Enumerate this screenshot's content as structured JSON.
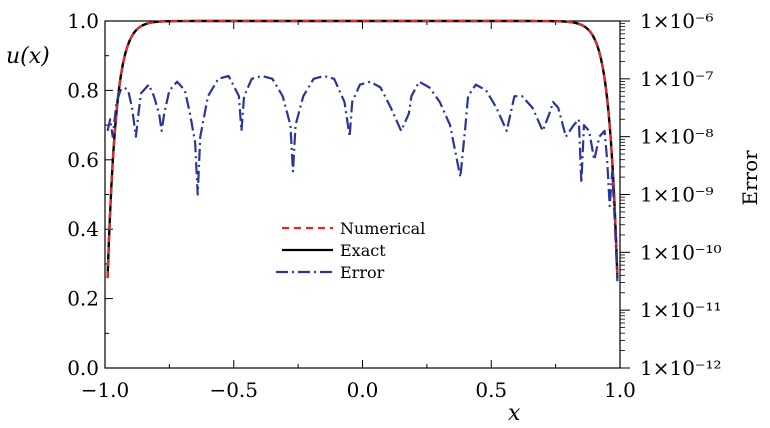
{
  "chart_data": {
    "type": "line",
    "title": "",
    "xlabel": "x",
    "ylabel": "u(x)",
    "y2label": "Error",
    "xlim": [
      -1.0,
      1.0
    ],
    "ylim": [
      0.0,
      1.0
    ],
    "y2lim_log10": [
      -12,
      -6
    ],
    "y2scale": "log",
    "x_ticks": [
      "−1.0",
      "−0.5",
      "0.0",
      "0.5",
      "1.0"
    ],
    "y_ticks": [
      "0.0",
      "0.2",
      "0.4",
      "0.6",
      "0.8",
      "1.0"
    ],
    "y2_ticks": [
      "1×10⁻¹²",
      "1×10⁻¹¹",
      "1×10⁻¹⁰",
      "1×10⁻⁹",
      "1×10⁻⁸",
      "1×10⁻⁷",
      "1×10⁻⁶"
    ],
    "grid": false,
    "legend_position": "center",
    "series": [
      {
        "name": "Numerical",
        "color": "#e8262a",
        "style": "dashed",
        "axis": "left"
      },
      {
        "name": "Exact",
        "color": "#000000",
        "style": "solid",
        "axis": "left"
      },
      {
        "name": "Error",
        "color": "#2b3595",
        "style": "dash-dot",
        "axis": "right",
        "x": [
          -0.99,
          -0.98,
          -0.97,
          -0.955,
          -0.94,
          -0.925,
          -0.91,
          -0.895,
          -0.88,
          -0.87,
          -0.86,
          -0.85,
          -0.83,
          -0.81,
          -0.79,
          -0.78,
          -0.77,
          -0.75,
          -0.72,
          -0.69,
          -0.67,
          -0.65,
          -0.64,
          -0.63,
          -0.6,
          -0.56,
          -0.52,
          -0.48,
          -0.47,
          -0.46,
          -0.43,
          -0.39,
          -0.35,
          -0.31,
          -0.28,
          -0.27,
          -0.26,
          -0.23,
          -0.19,
          -0.15,
          -0.11,
          -0.07,
          -0.05,
          -0.04,
          -0.01,
          0.03,
          0.07,
          0.11,
          0.15,
          0.18,
          0.19,
          0.22,
          0.26,
          0.3,
          0.34,
          0.38,
          0.4,
          0.41,
          0.44,
          0.48,
          0.52,
          0.56,
          0.58,
          0.59,
          0.62,
          0.66,
          0.7,
          0.73,
          0.74,
          0.76,
          0.79,
          0.82,
          0.84,
          0.85,
          0.86,
          0.88,
          0.9,
          0.92,
          0.94,
          0.95,
          0.96,
          0.97,
          0.98,
          0.99
        ],
        "y_log10": [
          -7.9,
          -7.7,
          -8.0,
          -7.4,
          -7.2,
          -7.15,
          -7.2,
          -7.5,
          -8.0,
          -7.6,
          -7.25,
          -7.2,
          -7.1,
          -7.3,
          -7.6,
          -7.9,
          -7.6,
          -7.2,
          -7.05,
          -7.2,
          -7.6,
          -8.1,
          -9.0,
          -8.0,
          -7.3,
          -7.0,
          -6.95,
          -7.3,
          -7.9,
          -7.3,
          -7.0,
          -6.95,
          -7.0,
          -7.3,
          -7.8,
          -8.6,
          -7.8,
          -7.3,
          -7.0,
          -6.95,
          -7.0,
          -7.4,
          -8.0,
          -7.4,
          -7.1,
          -7.05,
          -7.15,
          -7.5,
          -7.9,
          -7.6,
          -7.3,
          -7.05,
          -7.15,
          -7.4,
          -7.8,
          -8.7,
          -7.8,
          -7.3,
          -7.1,
          -7.2,
          -7.5,
          -7.9,
          -7.5,
          -7.3,
          -7.3,
          -7.5,
          -7.9,
          -7.55,
          -7.4,
          -7.5,
          -8.0,
          -7.8,
          -7.7,
          -8.8,
          -7.8,
          -7.9,
          -8.4,
          -8.0,
          -7.9,
          -8.4,
          -9.2,
          -8.6,
          -9.5,
          -10.5
        ]
      }
    ],
    "legend": [
      {
        "label": "Numerical"
      },
      {
        "label": "Exact"
      },
      {
        "label": "Error"
      }
    ]
  }
}
